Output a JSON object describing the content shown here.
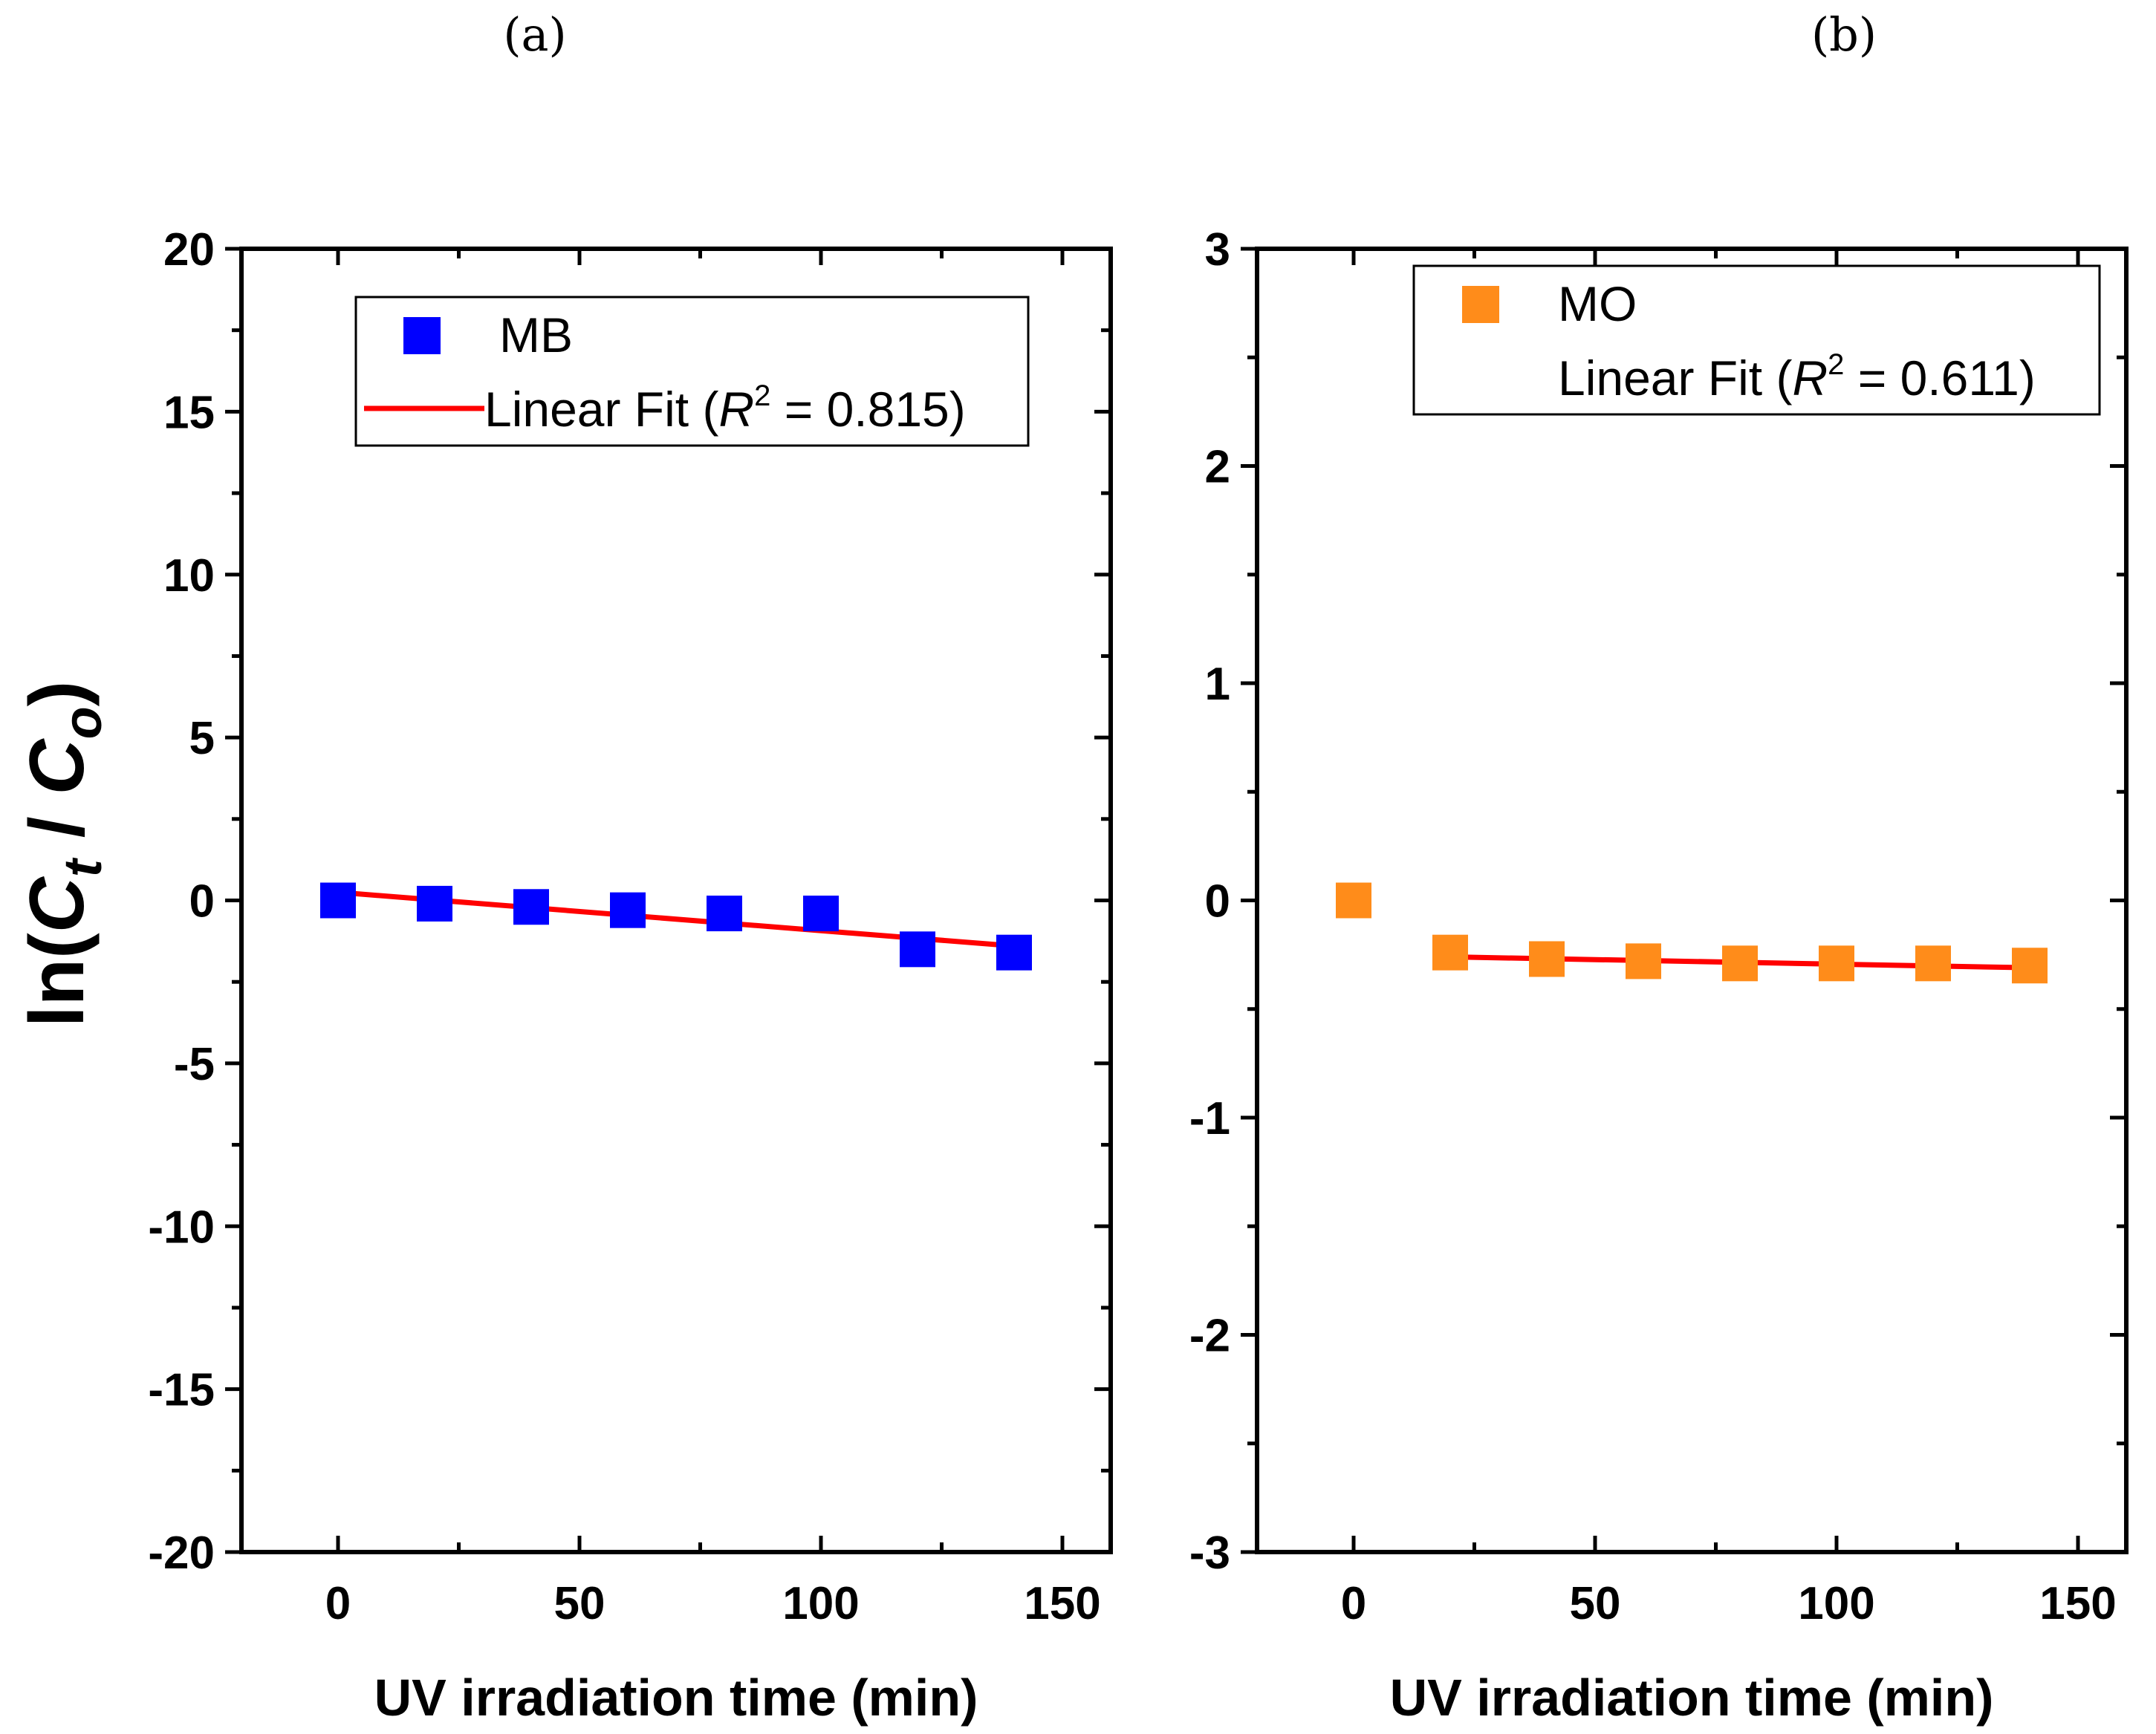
{
  "chart_data": [
    {
      "type": "scatter",
      "panel": "(a)",
      "xlabel": "UV irradiation time (min)",
      "ylabel": "ln(Ct / Co)",
      "xlim": [
        -20,
        160
      ],
      "ylim": [
        -20,
        20
      ],
      "xticks": [
        0,
        50,
        100,
        150
      ],
      "yticks": [
        -20,
        -15,
        -10,
        -5,
        0,
        5,
        10,
        15,
        20
      ],
      "series": [
        {
          "name": "MB",
          "kind": "markers",
          "color": "#0000ff",
          "x": [
            0,
            20,
            40,
            60,
            80,
            100,
            120,
            140
          ],
          "y": [
            0,
            -0.1,
            -0.2,
            -0.3,
            -0.4,
            -0.4,
            -1.5,
            -1.6
          ]
        },
        {
          "name": "Linear Fit",
          "kind": "line",
          "color": "#ff0000",
          "x": [
            0,
            140
          ],
          "y": [
            0.25,
            -1.4
          ]
        }
      ],
      "legend": {
        "position": "top-right",
        "marker_label": "MB",
        "fit_label_prefix": "Linear Fit (",
        "r_symbol": "R",
        "r_exponent": "2",
        "fit_value_suffix": " = 0.815)"
      }
    },
    {
      "type": "scatter",
      "panel": "(b)",
      "xlabel": "UV irradiation time (min)",
      "ylabel": "",
      "xlim": [
        -20,
        160
      ],
      "ylim": [
        -3,
        3
      ],
      "xticks": [
        0,
        50,
        100,
        150
      ],
      "yticks": [
        -3,
        -2,
        -1,
        0,
        1,
        2,
        3
      ],
      "series": [
        {
          "name": "MO",
          "kind": "markers",
          "color": "#ff8c1a",
          "x": [
            0,
            20,
            40,
            60,
            80,
            100,
            120,
            140
          ],
          "y": [
            0,
            -0.24,
            -0.27,
            -0.28,
            -0.29,
            -0.29,
            -0.29,
            -0.3
          ]
        },
        {
          "name": "Linear Fit",
          "kind": "line",
          "color": "#ff0000",
          "x": [
            20,
            140
          ],
          "y": [
            -0.26,
            -0.31
          ]
        }
      ],
      "legend": {
        "position": "top-right",
        "marker_label": "MO",
        "fit_label_prefix": "Linear Fit (",
        "r_symbol": "R",
        "r_exponent": "2",
        "fit_value_suffix": " = 0.611)"
      }
    }
  ],
  "ylabel_parts": {
    "prefix": "ln(",
    "c1": "C",
    "sub1": "t",
    "sep": " / ",
    "c2": "C",
    "sub2": "o",
    "suffix": ")"
  }
}
